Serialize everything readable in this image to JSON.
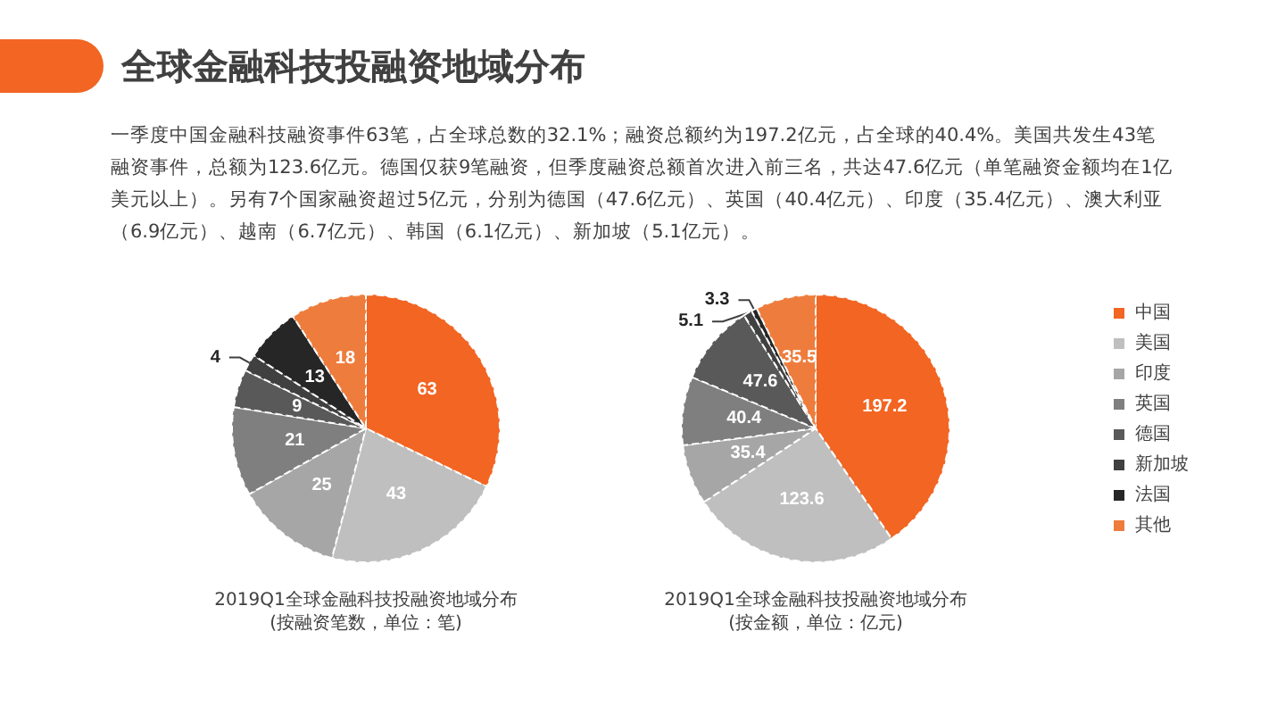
{
  "chart_data": {
    "type": "pie",
    "title": "全球金融科技投融资地域分布",
    "subtitle": "一季度中国金融科技融资事件63笔，占全球总数的32.1%；融资总额约为197.2亿元，占全球的40.4%。美国共发生43笔融资事件，总额为123.6亿元。德国仅获9笔融资，但季度融资总额首次进入前三名，共达47.6亿元（单笔融资金额均在1亿美元以上）。另有7个国家融资超过5亿元，分别为德国（47.6亿元）、英国（40.4亿元）、印度（35.4亿元）、澳大利亚（6.9亿元）、越南（6.7亿元）、韩国（6.1亿元）、新加坡（5.1亿元）。",
    "annotations": [
      "2019Q1全球金融科技投融资地域分布",
      "(按融资笔数，单位：笔)",
      "2019Q1全球金融科技投融资地域分布",
      "(按金额，单位：亿元)"
    ],
    "categories": [
      "中国",
      "美国",
      "印度",
      "英国",
      "德国",
      "新加坡",
      "法国",
      "其他"
    ],
    "colors": [
      "#f26522",
      "#bfbfbf",
      "#a6a6a6",
      "#7f7f7f",
      "#595959",
      "#404040",
      "#262626",
      "#ee7d3d"
    ],
    "series": [
      {
        "values": [
          63,
          43,
          25,
          21,
          9,
          4,
          13,
          18
        ]
      },
      {
        "values": [
          197.2,
          123.6,
          35.4,
          40.4,
          47.6,
          5.1,
          3.3,
          35.5
        ]
      }
    ],
    "data_labels": true,
    "legend": "right"
  }
}
